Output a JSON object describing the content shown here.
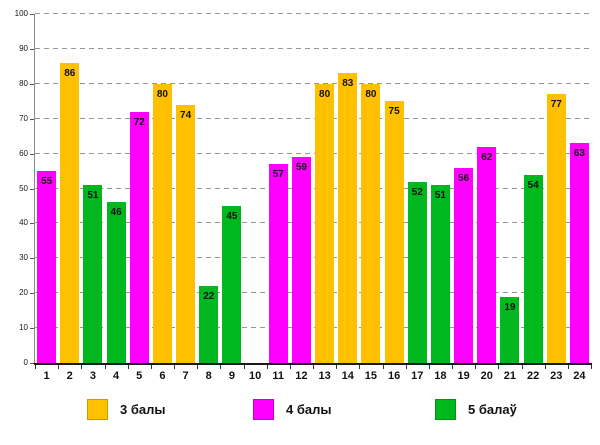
{
  "chart": {
    "background": "#ffffff",
    "legend": [
      {
        "label": "3 балы",
        "color": "#FFC000"
      },
      {
        "label": "4 балы",
        "color": "#FF00FF"
      },
      {
        "label": "5 балаў",
        "color": "#00B81E"
      }
    ]
  },
  "chart_data": {
    "type": "bar",
    "title": "",
    "xlabel": "",
    "ylabel": "",
    "ylim": [
      0,
      100
    ],
    "ytick_step": 10,
    "grid": "horizontal dashed",
    "legend_position": "bottom",
    "value_labels": "inside bar top",
    "categories": [
      "1",
      "2",
      "3",
      "4",
      "5",
      "6",
      "7",
      "8",
      "9",
      "10",
      "11",
      "12",
      "13",
      "14",
      "15",
      "16",
      "17",
      "18",
      "19",
      "20",
      "21",
      "22",
      "23",
      "24"
    ],
    "series_legend": [
      "3 балы",
      "4 балы",
      "5 балаў"
    ],
    "colors": {
      "3 балы": "#FFC000",
      "4 балы": "#FF00FF",
      "5 балаў": "#00B81E"
    },
    "bars": [
      {
        "category": "1",
        "value": 55,
        "series": "4 балы"
      },
      {
        "category": "2",
        "value": 86,
        "series": "3 балы"
      },
      {
        "category": "3",
        "value": 51,
        "series": "5 балаў"
      },
      {
        "category": "4",
        "value": 46,
        "series": "5 балаў"
      },
      {
        "category": "5",
        "value": 72,
        "series": "4 балы"
      },
      {
        "category": "6",
        "value": 80,
        "series": "3 балы"
      },
      {
        "category": "7",
        "value": 74,
        "series": "3 балы"
      },
      {
        "category": "8",
        "value": 22,
        "series": "5 балаў"
      },
      {
        "category": "9",
        "value": 45,
        "series": "5 балаў"
      },
      {
        "category": "10",
        "value": null,
        "series": null
      },
      {
        "category": "11",
        "value": 57,
        "series": "4 балы"
      },
      {
        "category": "12",
        "value": 59,
        "series": "4 балы"
      },
      {
        "category": "13",
        "value": 80,
        "series": "3 балы"
      },
      {
        "category": "14",
        "value": 83,
        "series": "3 балы"
      },
      {
        "category": "15",
        "value": 80,
        "series": "3 балы"
      },
      {
        "category": "16",
        "value": 75,
        "series": "3 балы"
      },
      {
        "category": "17",
        "value": 52,
        "series": "5 балаў"
      },
      {
        "category": "18",
        "value": 51,
        "series": "5 балаў"
      },
      {
        "category": "19",
        "value": 56,
        "series": "4 балы"
      },
      {
        "category": "20",
        "value": 62,
        "series": "4 балы"
      },
      {
        "category": "21",
        "value": 19,
        "series": "5 балаў"
      },
      {
        "category": "22",
        "value": 54,
        "series": "5 балаў"
      },
      {
        "category": "23",
        "value": 77,
        "series": "3 балы"
      },
      {
        "category": "24",
        "value": 63,
        "series": "4 балы"
      }
    ]
  }
}
